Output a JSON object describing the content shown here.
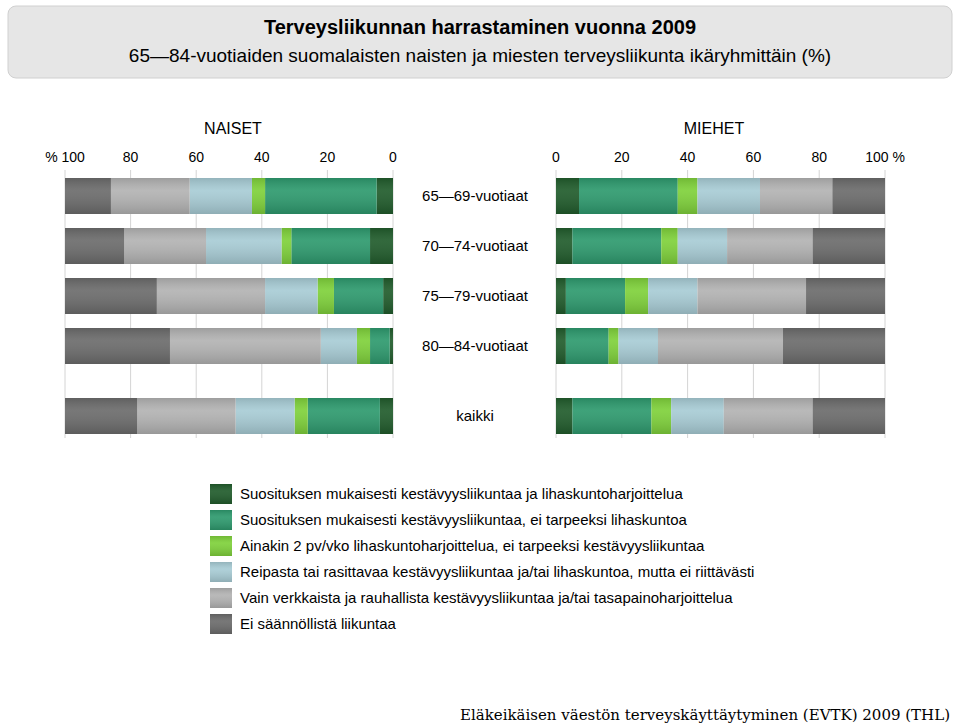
{
  "header": {
    "title": "Terveysliikunnan harrastaminen vuonna 2009",
    "subtitle": "65—84-vuotiaiden suomalaisten naisten ja miesten terveysliikunta ikäryhmittäin (%)"
  },
  "footer": "Eläkeikäisen väestön terveyskäyttäytyminen (EVTK) 2009 (THL)",
  "chart_data": [
    {
      "type": "bar",
      "title": "NAISET",
      "orientation": "horizontal",
      "stacked": true,
      "grid": true,
      "categories": [
        "65—69-vuotiaat",
        "70—74-vuotiaat",
        "75—79-vuotiaat",
        "80—84-vuotiaat",
        "kaikki"
      ],
      "xlim": [
        100,
        0
      ],
      "xticks": [
        {
          "value": 100,
          "label": "% 100"
        },
        80,
        60,
        40,
        20,
        0
      ],
      "series": [
        {
          "name": "Suosituksen mukaisesti kestävyysliikuntaa ja lihaskuntoharjoittelua",
          "color": "#215c2c",
          "values": [
            5,
            7,
            3,
            1,
            4
          ]
        },
        {
          "name": "Suosituksen mukaisesti kestävyysliikuntaa, ei tarpeeksi lihaskuntoa",
          "color": "#2e9a6e",
          "values": [
            34,
            24,
            15,
            6,
            22
          ]
        },
        {
          "name": "Ainakin 2 pv/vko lihaskuntoharjoittelua, ei tarpeeksi kestävyysliikuntaa",
          "color": "#7fd13b",
          "values": [
            4,
            3,
            5,
            4,
            4
          ]
        },
        {
          "name": "Reipasta tai rasittavaa kestävyysliikuntaa ja/tai lihaskuntoa, mutta ei riittävästi",
          "color": "#a8ccd5",
          "values": [
            19,
            23,
            16,
            11,
            18
          ]
        },
        {
          "name": "Vain verkkaista ja rauhallista kestävyysliikuntaa ja/tai tasapainoharjoittelua",
          "color": "#b3b3b3",
          "values": [
            24,
            25,
            33,
            46,
            30
          ]
        },
        {
          "name": "Ei säännöllistä liikuntaa",
          "color": "#6c6c6c",
          "values": [
            14,
            18,
            28,
            32,
            22
          ]
        }
      ]
    },
    {
      "type": "bar",
      "title": "MIEHET",
      "orientation": "horizontal",
      "stacked": true,
      "grid": true,
      "xlim": [
        0,
        100
      ],
      "xticks": [
        0,
        20,
        40,
        60,
        80,
        {
          "value": 100,
          "label": "100 %"
        }
      ],
      "series": [
        {
          "color": "#215c2c",
          "values": [
            7,
            5,
            3,
            3,
            5
          ]
        },
        {
          "color": "#2e9a6e",
          "values": [
            30,
            27,
            18,
            13,
            24
          ]
        },
        {
          "color": "#7fd13b",
          "values": [
            6,
            5,
            7,
            3,
            6
          ]
        },
        {
          "color": "#a8ccd5",
          "values": [
            19,
            15,
            15,
            12,
            16
          ]
        },
        {
          "color": "#b3b3b3",
          "values": [
            22,
            26,
            33,
            38,
            27
          ]
        },
        {
          "color": "#6c6c6c",
          "values": [
            16,
            22,
            24,
            31,
            22
          ]
        }
      ]
    }
  ]
}
